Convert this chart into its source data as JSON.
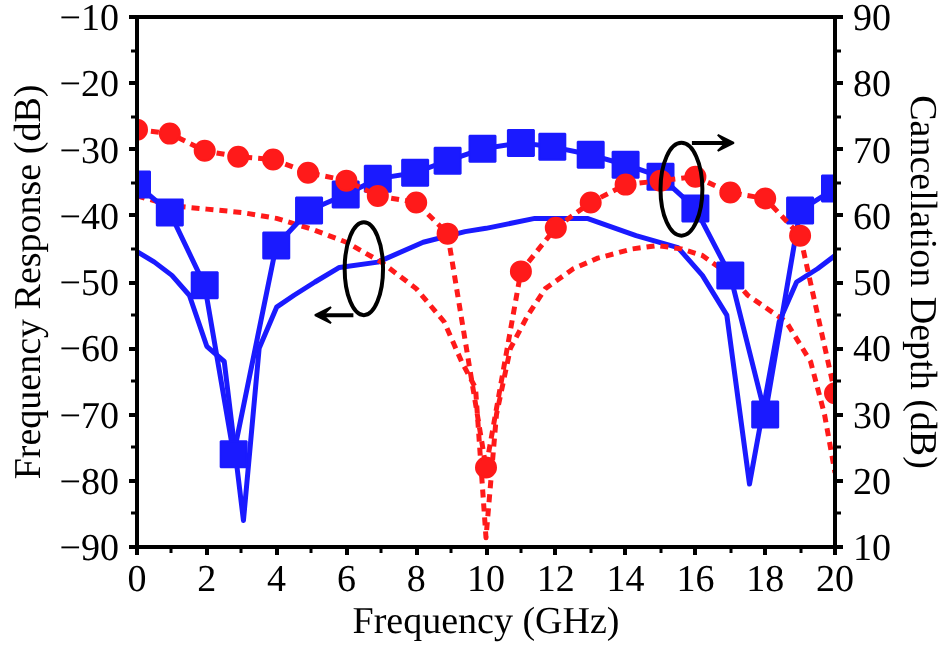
{
  "chart_data": {
    "type": "line",
    "xlabel": "Frequency (GHz)",
    "ylabel": "Frequency Response (dB)",
    "y2label": "Cancellation Depth (dB)",
    "xlim": [
      0,
      20
    ],
    "xticks": [
      0,
      2,
      4,
      6,
      8,
      10,
      12,
      14,
      16,
      18,
      20
    ],
    "ylim": [
      -90,
      -10
    ],
    "yticks": [
      -90,
      -80,
      -70,
      -60,
      -50,
      -40,
      -30,
      -20,
      -10
    ],
    "y2lim": [
      10,
      90
    ],
    "y2ticks": [
      10,
      20,
      30,
      40,
      50,
      60,
      70,
      80,
      90
    ],
    "grid": false,
    "series": [
      {
        "color": "#1a1aff",
        "marker": "none",
        "line_style": "solid",
        "x": [
          0,
          0.5,
          1,
          1.5,
          2,
          2.5,
          3.05,
          3.5,
          4,
          4.5,
          5.1,
          5.8,
          6.9,
          8.2,
          9.4,
          10,
          11.4,
          12.9,
          14.3,
          15.5,
          16.2,
          16.9,
          17.55,
          18.4,
          18.9,
          19.5,
          20
        ],
        "values": [
          -45.4,
          -47,
          -49,
          -52,
          -59.7,
          -62,
          -86,
          -60,
          -53.8,
          -52,
          -50,
          -47.8,
          -47,
          -44,
          -42.4,
          -41.9,
          -40.4,
          -40.4,
          -43,
          -44.8,
          -49,
          -55,
          -80.5,
          -56,
          -50,
          -48,
          -46
        ]
      },
      {
        "color": "#ff1a1a",
        "marker": "none",
        "line_style": "dashed",
        "x": [
          0,
          1,
          2,
          3,
          4,
          5,
          6,
          7,
          8,
          8.8,
          9.3,
          9.7,
          10,
          10.3,
          10.7,
          11.2,
          11.7,
          12.5,
          13.2,
          14.2,
          14.9,
          15.6,
          16.2,
          17,
          17.5,
          18.6,
          19.3,
          19.7,
          20
        ],
        "values": [
          -37,
          -38.5,
          -39,
          -39.5,
          -40.4,
          -42,
          -44,
          -47,
          -51,
          -56,
          -62,
          -66,
          -88.6,
          -70,
          -60,
          -55,
          -51,
          -48,
          -46.4,
          -45,
          -44.5,
          -45,
          -46,
          -49,
          -52,
          -56,
          -62,
          -70,
          -78.8
        ]
      },
      {
        "axis": "y2",
        "color": "#1a1aff",
        "marker": "square",
        "line_style": "solid",
        "x": [
          0,
          0.94,
          1.94,
          2.77,
          3.99,
          4.93,
          5.98,
          6.9,
          7.97,
          8.9,
          9.9,
          11,
          11.9,
          13,
          14,
          15,
          16,
          17,
          18,
          19,
          20
        ],
        "values": [
          64.7,
          60.5,
          49.5,
          24,
          55.5,
          60.8,
          63.2,
          65.6,
          66.5,
          68.3,
          70.1,
          71,
          70.4,
          69.2,
          67.7,
          65.9,
          61.1,
          51,
          30,
          60.8,
          64.1
        ]
      },
      {
        "axis": "y2",
        "color": "#ff1a1a",
        "marker": "circle",
        "line_style": "dashed",
        "x": [
          0,
          0.94,
          1.94,
          2.9,
          3.9,
          4.9,
          6,
          6.9,
          8,
          8.9,
          10,
          11,
          12,
          13,
          14,
          15,
          16,
          17,
          18,
          19,
          20
        ],
        "values": [
          73,
          72.4,
          69.8,
          68.9,
          68.5,
          66.5,
          65.3,
          63,
          62,
          57.3,
          22,
          51.6,
          58.2,
          62,
          64.7,
          65.3,
          65.9,
          63.5,
          62.6,
          57,
          33.2
        ]
      }
    ]
  }
}
